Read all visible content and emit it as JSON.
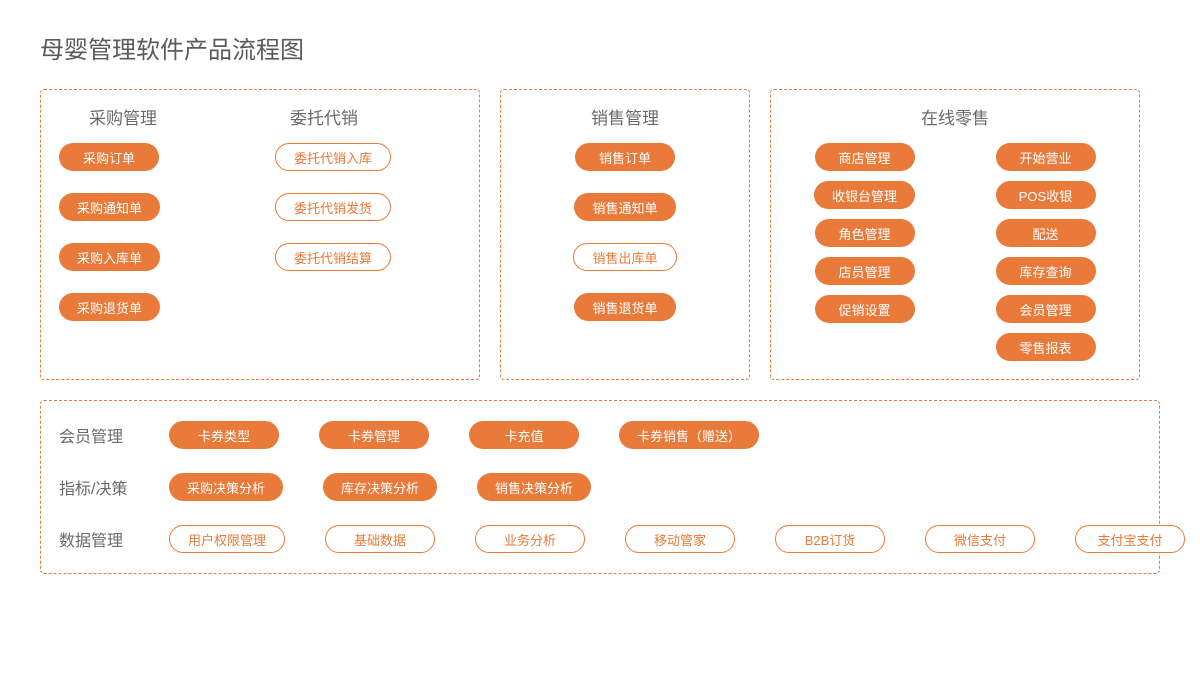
{
  "title": "母婴管理软件产品流程图",
  "colors": {
    "accent": "#e97a3a",
    "text": "#5a5a5a",
    "bg": "#ffffff"
  },
  "type": "flowchart",
  "panels": {
    "p1": {
      "headers": [
        "采购管理",
        "委托代销"
      ],
      "col1": [
        "采购订单",
        "采购通知单",
        "采购入库单",
        "采购退货单"
      ],
      "col2": [
        "委托代销入库",
        "委托代销发货",
        "委托代销结算"
      ]
    },
    "p2": {
      "headers": [
        "销售管理"
      ],
      "col1": [
        "销售订单",
        "销售通知单",
        "销售出库单",
        "销售退货单"
      ]
    },
    "p3": {
      "headers": [
        "在线零售"
      ],
      "col1": [
        "商店管理",
        "收银台管理",
        "角色管理",
        "店员管理",
        "促销设置"
      ],
      "col2": [
        "开始营业",
        "POS收银",
        "配送",
        "库存查询",
        "会员管理",
        "零售报表"
      ]
    }
  },
  "bottom": {
    "rows": [
      {
        "label": "会员管理",
        "style": "solid",
        "items": [
          "卡券类型",
          "卡券管理",
          "卡充值",
          "卡券销售（赠送）"
        ]
      },
      {
        "label": "指标/决策",
        "style": "solid",
        "items": [
          "采购决策分析",
          "库存决策分析",
          "销售决策分析"
        ]
      },
      {
        "label": "数据管理",
        "style": "outline",
        "items": [
          "用户权限管理",
          "基础数据",
          "业务分析",
          "移动管家",
          "B2B订货",
          "微信支付",
          "支付宝支付"
        ]
      }
    ]
  }
}
